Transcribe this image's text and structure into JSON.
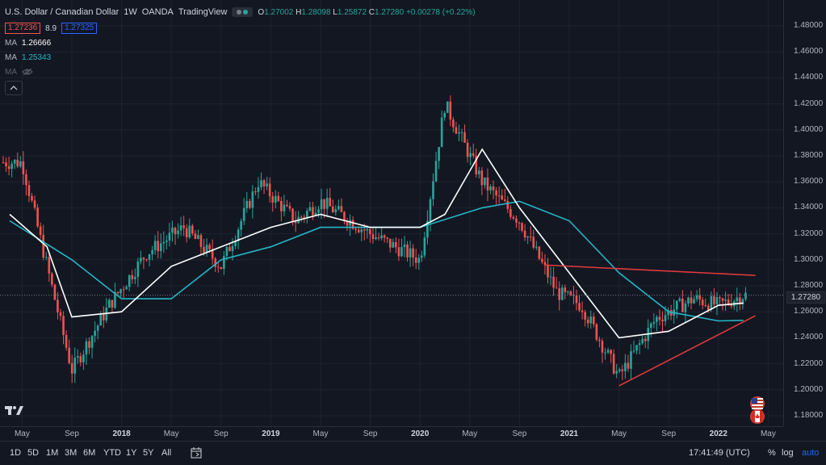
{
  "header": {
    "symbol": "U.S. Dollar / Canadian Dollar",
    "interval": "1W",
    "exchange": "OANDA",
    "source": "TradingView",
    "ohlc": {
      "o_label": "O",
      "o": "1.27002",
      "h_label": "H",
      "h": "1.28098",
      "l_label": "L",
      "l": "1.25872",
      "c_label": "C",
      "c": "1.27280",
      "change": "+0.00278 (+0.22%)"
    },
    "sell_price": "1.27236",
    "spread": "8.9",
    "buy_price": "1.27325"
  },
  "indicators": [
    {
      "label": "MA",
      "value": "1.26666",
      "color": "#ffffff"
    },
    {
      "label": "MA",
      "value": "1.25343",
      "color": "#26b6c6"
    },
    {
      "label": "MA",
      "value": "",
      "color": "#5d606b",
      "hidden": true
    }
  ],
  "price_axis": {
    "ticks": [
      "1.48000",
      "1.46000",
      "1.44000",
      "1.42000",
      "1.40000",
      "1.38000",
      "1.36000",
      "1.34000",
      "1.32000",
      "1.30000",
      "1.28000",
      "1.26000",
      "1.24000",
      "1.22000",
      "1.20000",
      "1.18000"
    ],
    "current_price": "1.27280"
  },
  "time_axis": {
    "ticks": [
      {
        "label": "May",
        "bold": false
      },
      {
        "label": "Sep",
        "bold": false
      },
      {
        "label": "2018",
        "bold": true
      },
      {
        "label": "May",
        "bold": false
      },
      {
        "label": "Sep",
        "bold": false
      },
      {
        "label": "2019",
        "bold": true
      },
      {
        "label": "May",
        "bold": false
      },
      {
        "label": "Sep",
        "bold": false
      },
      {
        "label": "2020",
        "bold": true
      },
      {
        "label": "May",
        "bold": false
      },
      {
        "label": "Sep",
        "bold": false
      },
      {
        "label": "2021",
        "bold": true
      },
      {
        "label": "May",
        "bold": false
      },
      {
        "label": "Sep",
        "bold": false
      },
      {
        "label": "2022",
        "bold": true
      },
      {
        "label": "May",
        "bold": false
      }
    ]
  },
  "bottom_bar": {
    "ranges": [
      "1D",
      "5D",
      "1M",
      "3M",
      "6M",
      "YTD",
      "1Y",
      "5Y",
      "All"
    ],
    "clock": "17:41:49 (UTC)",
    "percent_label": "%",
    "log_label": "log",
    "auto_label": "auto"
  },
  "colors": {
    "up": "#26a69a",
    "down": "#ef5350",
    "ma_fast": "#ffffff",
    "ma_slow": "#26b6c6",
    "trendline": "#e03a3e",
    "background": "#131722",
    "grid": "#1f2330"
  },
  "chart_data": {
    "type": "candlestick",
    "symbol": "U.S. Dollar / Canadian Dollar",
    "interval": "1W",
    "y_range": [
      1.17,
      1.49
    ],
    "x_range": [
      "2017-04",
      "2022-05"
    ],
    "key_points": [
      {
        "date": "2017-05",
        "price": 1.375
      },
      {
        "date": "2017-09",
        "price": 1.215
      },
      {
        "date": "2017-12",
        "price": 1.265
      },
      {
        "date": "2018-03",
        "price": 1.305
      },
      {
        "date": "2018-06",
        "price": 1.325
      },
      {
        "date": "2018-09",
        "price": 1.295
      },
      {
        "date": "2018-12",
        "price": 1.36
      },
      {
        "date": "2019-03",
        "price": 1.33
      },
      {
        "date": "2019-05",
        "price": 1.345
      },
      {
        "date": "2019-09",
        "price": 1.32
      },
      {
        "date": "2020-01",
        "price": 1.3
      },
      {
        "date": "2020-03",
        "price": 1.42
      },
      {
        "date": "2020-06",
        "price": 1.36
      },
      {
        "date": "2020-09",
        "price": 1.33
      },
      {
        "date": "2020-12",
        "price": 1.275
      },
      {
        "date": "2021-02",
        "price": 1.265
      },
      {
        "date": "2021-05",
        "price": 1.21
      },
      {
        "date": "2021-08",
        "price": 1.255
      },
      {
        "date": "2021-11",
        "price": 1.27
      },
      {
        "date": "2022-01",
        "price": 1.265
      },
      {
        "date": "2022-03",
        "price": 1.2728
      }
    ],
    "ma_fast_points": [
      {
        "date": "2017-04",
        "price": 1.335
      },
      {
        "date": "2017-07",
        "price": 1.31
      },
      {
        "date": "2017-09",
        "price": 1.256
      },
      {
        "date": "2018-01",
        "price": 1.26
      },
      {
        "date": "2018-05",
        "price": 1.295
      },
      {
        "date": "2018-09",
        "price": 1.31
      },
      {
        "date": "2019-01",
        "price": 1.325
      },
      {
        "date": "2019-05",
        "price": 1.335
      },
      {
        "date": "2019-09",
        "price": 1.325
      },
      {
        "date": "2020-01",
        "price": 1.325
      },
      {
        "date": "2020-03",
        "price": 1.335
      },
      {
        "date": "2020-06",
        "price": 1.385
      },
      {
        "date": "2020-09",
        "price": 1.34
      },
      {
        "date": "2021-01",
        "price": 1.29
      },
      {
        "date": "2021-05",
        "price": 1.24
      },
      {
        "date": "2021-09",
        "price": 1.245
      },
      {
        "date": "2022-01",
        "price": 1.265
      },
      {
        "date": "2022-03",
        "price": 1.2667
      }
    ],
    "ma_slow_points": [
      {
        "date": "2017-04",
        "price": 1.33
      },
      {
        "date": "2017-09",
        "price": 1.3
      },
      {
        "date": "2018-01",
        "price": 1.27
      },
      {
        "date": "2018-05",
        "price": 1.27
      },
      {
        "date": "2018-09",
        "price": 1.3
      },
      {
        "date": "2019-01",
        "price": 1.31
      },
      {
        "date": "2019-05",
        "price": 1.325
      },
      {
        "date": "2019-09",
        "price": 1.325
      },
      {
        "date": "2020-01",
        "price": 1.325
      },
      {
        "date": "2020-06",
        "price": 1.34
      },
      {
        "date": "2020-09",
        "price": 1.345
      },
      {
        "date": "2021-01",
        "price": 1.33
      },
      {
        "date": "2021-05",
        "price": 1.29
      },
      {
        "date": "2021-09",
        "price": 1.26
      },
      {
        "date": "2022-01",
        "price": 1.253
      },
      {
        "date": "2022-03",
        "price": 1.2534
      }
    ],
    "trendlines": [
      {
        "from": {
          "date": "2020-11",
          "price": 1.296
        },
        "to": {
          "date": "2022-03",
          "price": 1.288
        }
      },
      {
        "from": {
          "date": "2021-05",
          "price": 1.203
        },
        "to": {
          "date": "2022-03",
          "price": 1.257
        }
      }
    ]
  }
}
